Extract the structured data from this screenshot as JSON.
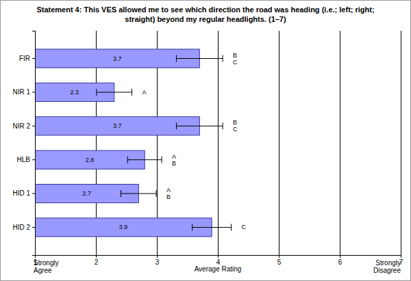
{
  "chart_data": {
    "type": "bar",
    "orientation": "horizontal",
    "title": "Statement 4: This VES allowed me to see which direction the road was heading (i.e.; left; right; straight) beyond my regular headlights. (1–7)",
    "categories": [
      "FIR",
      "NIR 1",
      "NIR 2",
      "HLB",
      "HID 1",
      "HID 2"
    ],
    "values": [
      3.7,
      2.3,
      3.7,
      2.8,
      2.7,
      3.9
    ],
    "errors": [
      0.38,
      0.29,
      0.38,
      0.28,
      0.29,
      0.32
    ],
    "group_letters": [
      [
        "B",
        "C"
      ],
      [
        "A"
      ],
      [
        "B",
        "C"
      ],
      [
        "A",
        "B"
      ],
      [
        "A",
        "B"
      ],
      [
        "C"
      ]
    ],
    "color": "#9999ff",
    "xlim": [
      1,
      7
    ],
    "xticks": [
      1,
      2,
      3,
      4,
      5,
      6,
      7
    ],
    "grid": true,
    "data_labels": true,
    "x_label": "Average Rating",
    "x_end_labels": [
      "Strongly Agree",
      "Strongly Disagree"
    ]
  }
}
